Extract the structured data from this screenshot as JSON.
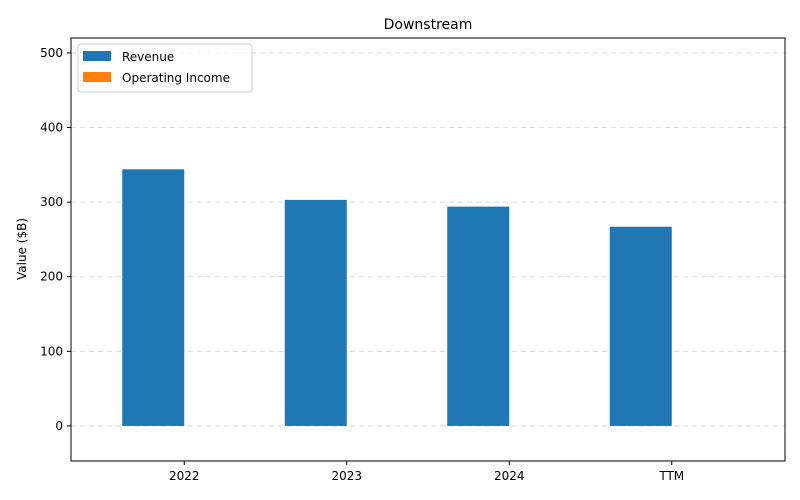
{
  "chart_data": {
    "type": "bar",
    "title": "Downstream",
    "xlabel": "",
    "ylabel": "Value ($B)",
    "categories": [
      "2022",
      "2023",
      "2024",
      "TTM"
    ],
    "series": [
      {
        "name": "Revenue",
        "values": [
          344,
          303,
          294,
          267
        ],
        "color": "#1f77b4"
      },
      {
        "name": "Operating Income",
        "values": [
          0,
          0,
          0,
          0
        ],
        "color": "#ff7f0e"
      }
    ],
    "ylim": [
      -47,
      520
    ],
    "yticks": [
      0,
      100,
      200,
      300,
      400,
      500
    ],
    "grid": true,
    "legend_position": "top-left"
  }
}
